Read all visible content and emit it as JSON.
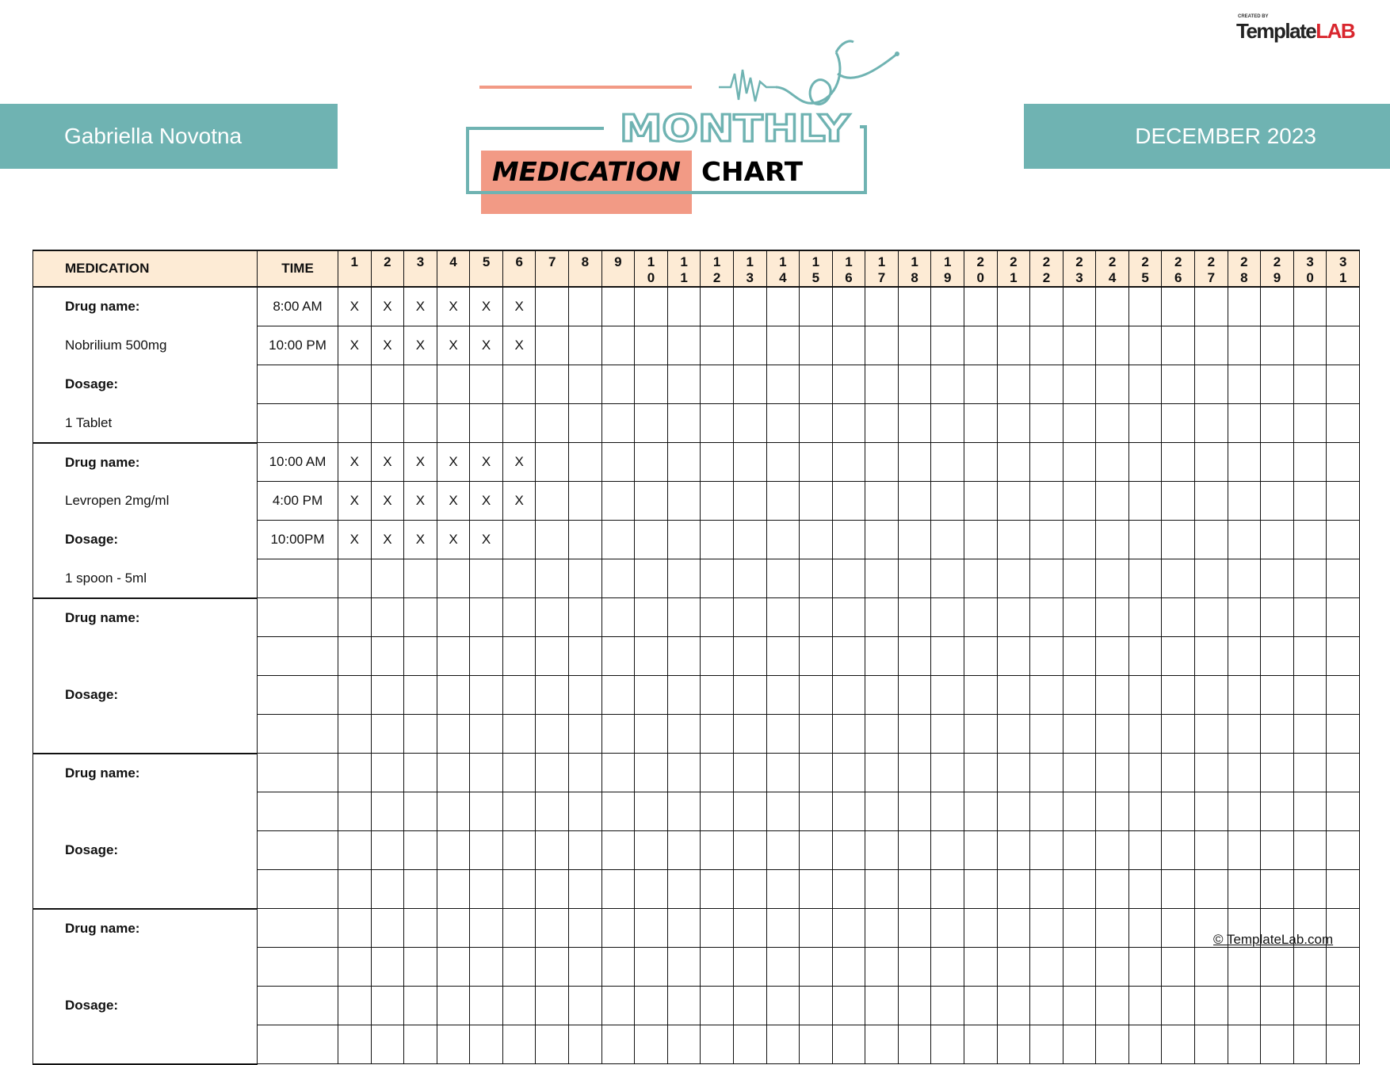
{
  "header": {
    "patient_name": "Gabriella Novotna",
    "month": "DECEMBER 2023",
    "title_line1": "MONTHLY",
    "title_line2a": "MEDICATION",
    "title_line2b": "CHART",
    "logo": {
      "created_by": "CREATED BY",
      "brand_a": "Template",
      "brand_b": "LAB"
    }
  },
  "colors": {
    "teal": "#6fb3b2",
    "salmon": "#f29a85",
    "header_bg": "#fdebd5",
    "logo_red": "#d9262e"
  },
  "table": {
    "headers": {
      "medication": "MEDICATION",
      "time": "TIME"
    },
    "days": [
      "1",
      "2",
      "3",
      "4",
      "5",
      "6",
      "7",
      "8",
      "9",
      "10",
      "11",
      "12",
      "13",
      "14",
      "15",
      "16",
      "17",
      "18",
      "19",
      "20",
      "21",
      "22",
      "23",
      "24",
      "25",
      "26",
      "27",
      "28",
      "29",
      "30",
      "31"
    ],
    "groups": [
      {
        "labels": [
          "Drug name:",
          "Nobrilium 500mg",
          "Dosage:",
          "1 Tablet"
        ],
        "times": [
          "8:00 AM",
          "10:00 PM",
          "",
          ""
        ],
        "marks": [
          [
            "X",
            "X",
            "X",
            "X",
            "X",
            "X"
          ],
          [
            "X",
            "X",
            "X",
            "X",
            "X",
            "X"
          ],
          [],
          []
        ]
      },
      {
        "labels": [
          "Drug name:",
          "Levropen 2mg/ml",
          "Dosage:",
          "1 spoon - 5ml"
        ],
        "times": [
          "10:00 AM",
          "4:00 PM",
          "10:00PM",
          ""
        ],
        "marks": [
          [
            "X",
            "X",
            "X",
            "X",
            "X",
            "X"
          ],
          [
            "X",
            "X",
            "X",
            "X",
            "X",
            "X"
          ],
          [
            "X",
            "X",
            "X",
            "X",
            "X"
          ],
          []
        ]
      },
      {
        "labels": [
          "Drug name:",
          "",
          "Dosage:",
          ""
        ],
        "times": [
          "",
          "",
          "",
          ""
        ],
        "marks": [
          [],
          [],
          [],
          []
        ]
      },
      {
        "labels": [
          "Drug name:",
          "",
          "Dosage:",
          ""
        ],
        "times": [
          "",
          "",
          "",
          ""
        ],
        "marks": [
          [],
          [],
          [],
          []
        ]
      },
      {
        "labels": [
          "Drug name:",
          "",
          "Dosage:",
          ""
        ],
        "times": [
          "",
          "",
          "",
          ""
        ],
        "marks": [
          [],
          [],
          [],
          []
        ]
      }
    ]
  },
  "footer": {
    "link": "© TemplateLab.com"
  }
}
